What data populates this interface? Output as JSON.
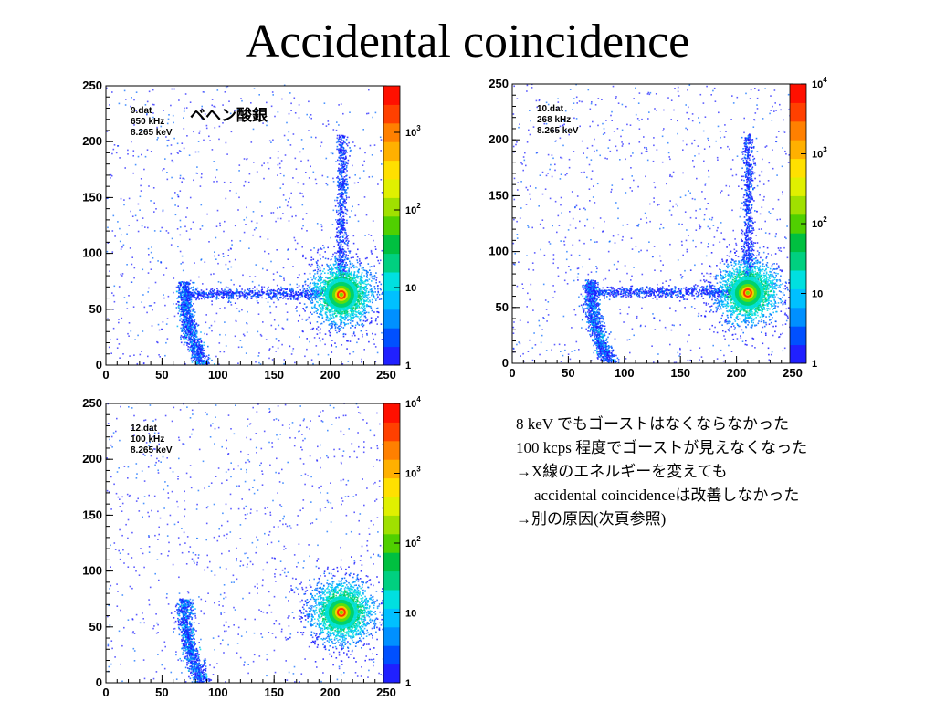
{
  "slide": {
    "title": "Accidental coincidence",
    "annotation": "ベヘン酸銀",
    "notes": [
      "8 keV でもゴーストはなくならなかった",
      "100 kcps 程度でゴーストが見えなくなった",
      "→X線のエネルギーを変えても",
      "accidental coincidenceは改善しなかった",
      "→別の原因(次頁参照)"
    ]
  },
  "chart_data": [
    {
      "type": "heatmap",
      "info": [
        "9.dat",
        "650 kHz",
        "8.265 keV"
      ],
      "xlim": [
        0,
        250
      ],
      "ylim": [
        0,
        250
      ],
      "xticks": [
        "0",
        "50",
        "100",
        "150",
        "200",
        "250"
      ],
      "yticks": [
        "0",
        "50",
        "100",
        "150",
        "200",
        "250"
      ],
      "colorbar": {
        "scale": "log",
        "ticks": [
          "1",
          "10",
          "10^2",
          "10^3"
        ]
      },
      "arc": {
        "center": [
          210,
          65
        ],
        "radius": 140
      },
      "hot_spot": {
        "center": [
          210,
          63
        ]
      },
      "ghost_lines": [
        {
          "orientation": "horizontal",
          "y": 63,
          "from": 70,
          "to": 210
        },
        {
          "orientation": "vertical",
          "x": 210,
          "from": 63,
          "to": 205
        }
      ],
      "palette": [
        "#1a1aff",
        "#0066ff",
        "#00b0ff",
        "#00e0e0",
        "#00d060",
        "#66e000",
        "#d0f000",
        "#ffd000",
        "#ff8000",
        "#ff2000"
      ]
    },
    {
      "type": "heatmap",
      "info": [
        "10.dat",
        "268 kHz",
        "8.265 keV"
      ],
      "xlim": [
        0,
        250
      ],
      "ylim": [
        0,
        250
      ],
      "xticks": [
        "0",
        "50",
        "100",
        "150",
        "200",
        "250"
      ],
      "yticks": [
        "0",
        "50",
        "100",
        "150",
        "200",
        "250"
      ],
      "colorbar": {
        "scale": "log",
        "ticks": [
          "1",
          "10",
          "10^2",
          "10^3",
          "10^4"
        ]
      },
      "arc": {
        "center": [
          210,
          65
        ],
        "radius": 140
      },
      "hot_spot": {
        "center": [
          210,
          63
        ]
      },
      "ghost_lines": [
        {
          "orientation": "horizontal",
          "y": 63,
          "from": 70,
          "to": 210
        },
        {
          "orientation": "vertical",
          "x": 210,
          "from": 63,
          "to": 205
        }
      ],
      "palette": [
        "#1a1aff",
        "#0066ff",
        "#00b0ff",
        "#00e0e0",
        "#00d060",
        "#66e000",
        "#d0f000",
        "#ffd000",
        "#ff8000",
        "#ff2000"
      ]
    },
    {
      "type": "heatmap",
      "info": [
        "12.dat",
        "100 kHz",
        "8.265 keV"
      ],
      "xlim": [
        0,
        250
      ],
      "ylim": [
        0,
        250
      ],
      "xticks": [
        "0",
        "50",
        "100",
        "150",
        "200",
        "250"
      ],
      "yticks": [
        "0",
        "50",
        "100",
        "150",
        "200",
        "250"
      ],
      "colorbar": {
        "scale": "log",
        "ticks": [
          "1",
          "10",
          "10^2",
          "10^3",
          "10^4"
        ]
      },
      "arc": {
        "center": [
          210,
          65
        ],
        "radius": 140
      },
      "hot_spot": {
        "center": [
          210,
          63
        ]
      },
      "ghost_lines": [],
      "palette": [
        "#1a1aff",
        "#0066ff",
        "#00b0ff",
        "#00e0e0",
        "#00d060",
        "#66e000",
        "#d0f000",
        "#ffd000",
        "#ff8000",
        "#ff2000"
      ]
    }
  ]
}
